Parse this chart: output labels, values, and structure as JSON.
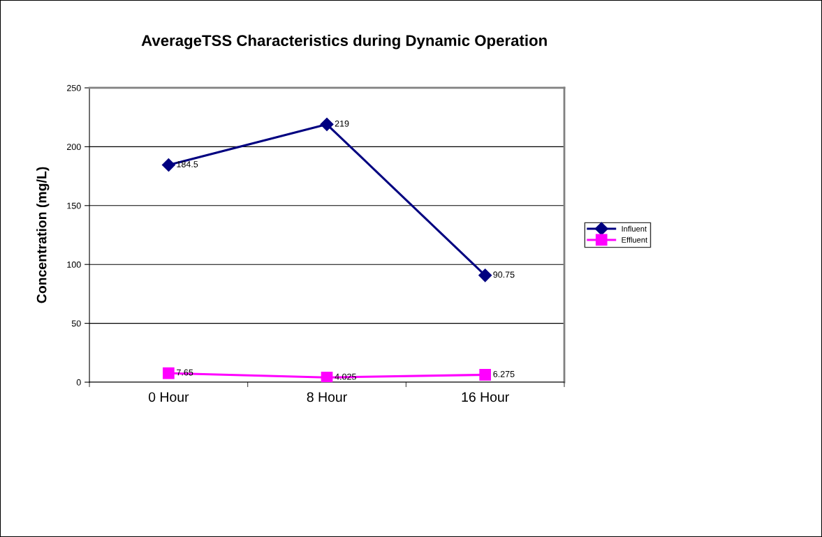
{
  "chart_data": {
    "type": "line",
    "title": "AverageTSS Characteristics during Dynamic Operation",
    "ylabel": "Concentration (mg/L)",
    "categories": [
      "0 Hour",
      "8 Hour",
      "16 Hour"
    ],
    "series": [
      {
        "name": "Influent",
        "color": "#000080",
        "marker": "diamond",
        "values": [
          184.5,
          219,
          90.75
        ]
      },
      {
        "name": "Effluent",
        "color": "#ff00ff",
        "marker": "square",
        "values": [
          7.65,
          4.025,
          6.275
        ]
      }
    ],
    "ylim": [
      0,
      250
    ],
    "yticks": [
      0,
      50,
      100,
      150,
      200,
      250
    ],
    "grid": "y",
    "legend": "right",
    "data_labels": true,
    "line_style": "solid"
  }
}
